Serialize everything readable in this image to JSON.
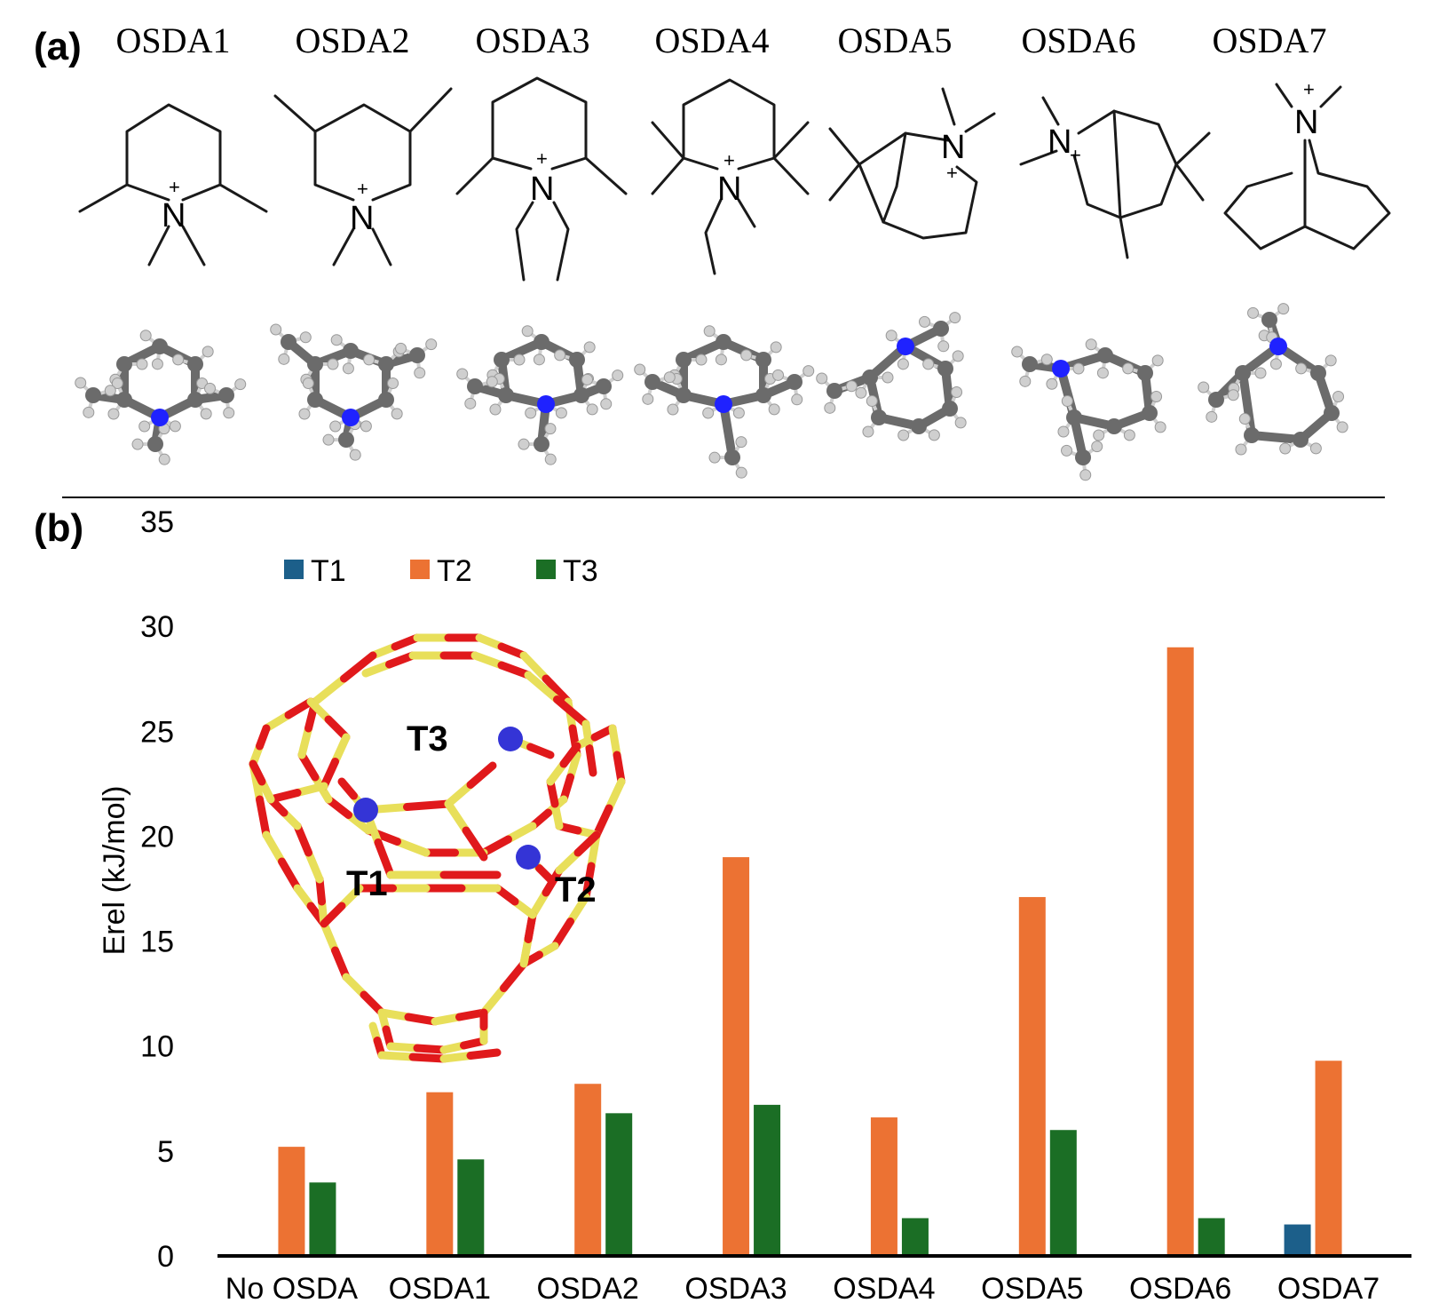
{
  "panel_a": {
    "label": "(a)",
    "osda_names": [
      "OSDA1",
      "OSDA2",
      "OSDA3",
      "OSDA4",
      "OSDA5",
      "OSDA6",
      "OSDA7"
    ],
    "charge_symbol": "+",
    "nitrogen_symbol": "N",
    "colors": {
      "nitrogen": "#1f22ff",
      "carbon": "#6b6b6b",
      "hydrogen": "#cfcfcf"
    }
  },
  "panel_b": {
    "label": "(b)"
  },
  "inset": {
    "site_labels": [
      "T1",
      "T2",
      "T3"
    ],
    "colors": {
      "si": "#e8df5a",
      "o": "#e0191b",
      "t_site": "#3434d6"
    }
  },
  "chart_data": {
    "type": "bar",
    "categories": [
      "No OSDA",
      "OSDA1",
      "OSDA2",
      "OSDA3",
      "OSDA4",
      "OSDA5",
      "OSDA6",
      "OSDA7"
    ],
    "series": [
      {
        "name": "T1",
        "color": "#1c5f8a",
        "values": [
          0,
          0,
          0,
          0,
          0,
          0,
          0,
          1.5
        ]
      },
      {
        "name": "T2",
        "color": "#ec7233",
        "values": [
          5.2,
          7.8,
          8.2,
          19.0,
          6.6,
          17.1,
          29.0,
          9.3
        ]
      },
      {
        "name": "T3",
        "color": "#1b6e25",
        "values": [
          3.5,
          4.6,
          6.8,
          7.2,
          1.8,
          6.0,
          1.8,
          0
        ]
      }
    ],
    "title": "",
    "xlabel": "",
    "ylabel": "Erel (kJ/mol)",
    "ylim": [
      0,
      35
    ],
    "yticks": [
      0,
      5,
      10,
      15,
      20,
      25,
      30,
      35
    ],
    "grid": false,
    "legend_position": "top-left"
  }
}
